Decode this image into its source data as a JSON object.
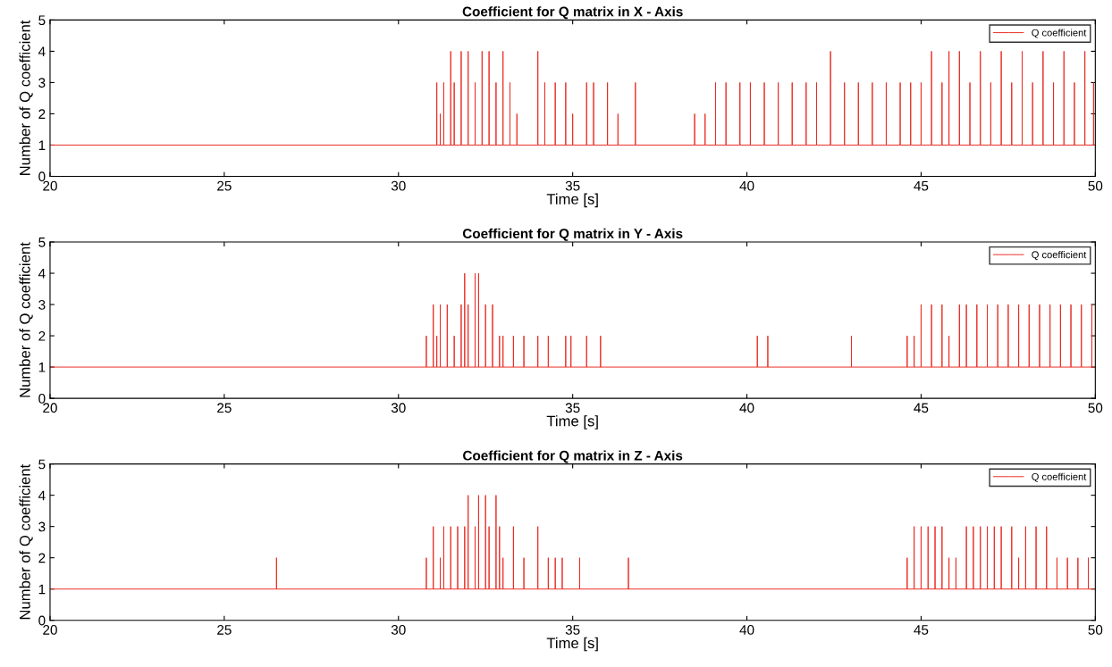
{
  "chart_data": [
    {
      "type": "line",
      "title": "Coefficient for Q matrix in X - Axis",
      "xlabel": "Time [s]",
      "ylabel": "Number of Q coefficient",
      "xlim": [
        20,
        50
      ],
      "ylim": [
        0,
        5
      ],
      "xticks": [
        20,
        25,
        30,
        35,
        40,
        45,
        50
      ],
      "yticks": [
        0,
        1,
        2,
        3,
        4,
        5
      ],
      "legend": "top right",
      "grid": false,
      "series": [
        {
          "name": "Q coefficient",
          "color": "#ea2a22",
          "x": [
            20,
            31.1,
            31.1,
            31.1,
            31.2,
            31.2,
            31.2,
            31.3,
            31.3,
            31.3,
            31.5,
            31.5,
            31.5,
            31.6,
            31.6,
            31.6,
            31.8,
            31.8,
            31.8,
            32.0,
            32.0,
            32.0,
            32.2,
            32.2,
            32.2,
            32.4,
            32.4,
            32.4,
            32.6,
            32.6,
            32.6,
            32.8,
            32.8,
            32.8,
            33.0,
            33.0,
            33.0,
            33.2,
            33.2,
            33.2,
            33.4,
            33.4,
            33.4,
            34.0,
            34.0,
            34.0,
            34.2,
            34.2,
            34.2,
            34.5,
            34.5,
            34.5,
            34.8,
            34.8,
            34.8,
            35.0,
            35.0,
            35.0,
            35.4,
            35.4,
            35.4,
            35.6,
            35.6,
            35.6,
            36.0,
            36.0,
            36.0,
            36.3,
            36.3,
            36.3,
            36.8,
            36.8,
            36.8,
            38.5,
            38.5,
            38.5,
            38.8,
            38.8,
            38.8,
            39.1,
            39.1,
            39.1,
            39.4,
            39.4,
            39.4,
            39.8,
            39.8,
            39.8,
            40.1,
            40.1,
            40.1,
            40.5,
            40.5,
            40.5,
            40.9,
            40.9,
            40.9,
            41.3,
            41.3,
            41.3,
            41.7,
            41.7,
            41.7,
            42.0,
            42.0,
            42.0,
            42.4,
            42.4,
            42.4,
            42.8,
            42.8,
            42.8,
            43.2,
            43.2,
            43.2,
            43.6,
            43.6,
            43.6,
            44.0,
            44.0,
            44.0,
            44.4,
            44.4,
            44.4,
            44.7,
            44.7,
            44.7,
            45.0,
            45.0,
            45.0,
            45.3,
            45.3,
            45.3,
            45.6,
            45.6,
            45.6,
            45.8,
            45.8,
            45.8,
            46.1,
            46.1,
            46.1,
            46.4,
            46.4,
            46.4,
            46.7,
            46.7,
            46.7,
            47.0,
            47.0,
            47.0,
            47.3,
            47.3,
            47.3,
            47.6,
            47.6,
            47.6,
            47.9,
            47.9,
            47.9,
            48.2,
            48.2,
            48.2,
            48.5,
            48.5,
            48.5,
            48.8,
            48.8,
            48.8,
            49.1,
            49.1,
            49.1,
            49.4,
            49.4,
            49.4,
            49.7,
            49.7,
            49.7,
            49.95,
            49.95,
            49.95,
            50
          ],
          "values": [
            1,
            1,
            3,
            1,
            1,
            2,
            1,
            1,
            3,
            1,
            1,
            4,
            1,
            1,
            3,
            1,
            1,
            4,
            1,
            1,
            4,
            1,
            1,
            3,
            1,
            1,
            4,
            1,
            1,
            4,
            1,
            1,
            3,
            1,
            1,
            4,
            1,
            1,
            3,
            1,
            1,
            2,
            1,
            1,
            4,
            1,
            1,
            3,
            1,
            1,
            3,
            1,
            1,
            3,
            1,
            1,
            2,
            1,
            1,
            3,
            1,
            1,
            3,
            1,
            1,
            3,
            1,
            1,
            2,
            1,
            1,
            3,
            1,
            1,
            2,
            1,
            1,
            2,
            1,
            1,
            3,
            1,
            1,
            3,
            1,
            1,
            3,
            1,
            1,
            3,
            1,
            1,
            3,
            1,
            1,
            3,
            1,
            1,
            3,
            1,
            1,
            3,
            1,
            1,
            3,
            1,
            1,
            4,
            1,
            1,
            3,
            1,
            1,
            3,
            1,
            1,
            3,
            1,
            1,
            3,
            1,
            1,
            3,
            1,
            1,
            3,
            1,
            1,
            3,
            1,
            1,
            4,
            1,
            1,
            3,
            1,
            1,
            4,
            1,
            1,
            4,
            1,
            1,
            3,
            1,
            1,
            4,
            1,
            1,
            3,
            1,
            1,
            4,
            1,
            1,
            3,
            1,
            1,
            4,
            1,
            1,
            3,
            1,
            1,
            4,
            1,
            1,
            3,
            1,
            1,
            4,
            1,
            1,
            3,
            1,
            1,
            4,
            1,
            1,
            3,
            1,
            1
          ]
        }
      ]
    },
    {
      "type": "line",
      "title": "Coefficient for Q matrix in Y - Axis",
      "xlabel": "Time [s]",
      "ylabel": "Number of Q coefficient",
      "xlim": [
        20,
        50
      ],
      "ylim": [
        0,
        5
      ],
      "xticks": [
        20,
        25,
        30,
        35,
        40,
        45,
        50
      ],
      "yticks": [
        0,
        1,
        2,
        3,
        4,
        5
      ],
      "legend": "top right",
      "grid": false,
      "series": [
        {
          "name": "Q coefficient",
          "color": "#ea2a22",
          "x": [
            20,
            30.8,
            30.8,
            30.8,
            31.0,
            31.0,
            31.0,
            31.1,
            31.1,
            31.1,
            31.2,
            31.2,
            31.2,
            31.4,
            31.4,
            31.4,
            31.6,
            31.6,
            31.6,
            31.8,
            31.8,
            31.8,
            31.9,
            31.9,
            31.9,
            32.0,
            32.0,
            32.0,
            32.2,
            32.2,
            32.2,
            32.3,
            32.3,
            32.3,
            32.5,
            32.5,
            32.5,
            32.7,
            32.7,
            32.7,
            32.9,
            32.9,
            32.9,
            33.0,
            33.0,
            33.0,
            33.3,
            33.3,
            33.3,
            33.6,
            33.6,
            33.6,
            34.0,
            34.0,
            34.0,
            34.3,
            34.3,
            34.3,
            34.8,
            34.8,
            34.8,
            34.95,
            34.95,
            34.95,
            35.4,
            35.4,
            35.4,
            35.8,
            35.8,
            35.8,
            40.3,
            40.3,
            40.3,
            40.6,
            40.6,
            40.6,
            43.0,
            43.0,
            43.0,
            44.6,
            44.6,
            44.6,
            44.8,
            44.8,
            44.8,
            45.0,
            45.0,
            45.0,
            45.3,
            45.3,
            45.3,
            45.6,
            45.6,
            45.6,
            45.8,
            45.8,
            45.8,
            46.1,
            46.1,
            46.1,
            46.3,
            46.3,
            46.3,
            46.6,
            46.6,
            46.6,
            46.9,
            46.9,
            46.9,
            47.2,
            47.2,
            47.2,
            47.5,
            47.5,
            47.5,
            47.8,
            47.8,
            47.8,
            48.1,
            48.1,
            48.1,
            48.4,
            48.4,
            48.4,
            48.7,
            48.7,
            48.7,
            49.0,
            49.0,
            49.0,
            49.3,
            49.3,
            49.3,
            49.6,
            49.6,
            49.6,
            49.9,
            49.9,
            49.9,
            50
          ],
          "values": [
            1,
            1,
            2,
            1,
            1,
            3,
            1,
            1,
            2,
            1,
            1,
            3,
            1,
            1,
            3,
            1,
            1,
            2,
            1,
            1,
            3,
            1,
            1,
            4,
            1,
            1,
            3,
            1,
            1,
            4,
            1,
            1,
            4,
            1,
            1,
            3,
            1,
            1,
            3,
            1,
            1,
            2,
            1,
            1,
            2,
            1,
            1,
            2,
            1,
            1,
            2,
            1,
            1,
            2,
            1,
            1,
            2,
            1,
            1,
            2,
            1,
            1,
            2,
            1,
            1,
            2,
            1,
            1,
            2,
            1,
            1,
            2,
            1,
            1,
            2,
            1,
            1,
            2,
            1,
            1,
            2,
            1,
            1,
            2,
            1,
            1,
            3,
            1,
            1,
            3,
            1,
            1,
            3,
            1,
            1,
            2,
            1,
            1,
            3,
            1,
            1,
            3,
            1,
            1,
            3,
            1,
            1,
            3,
            1,
            1,
            3,
            1,
            1,
            3,
            1,
            1,
            3,
            1,
            1,
            3,
            1,
            1,
            3,
            1,
            1,
            3,
            1,
            1,
            3,
            1,
            1,
            3,
            1,
            1,
            3,
            1,
            1,
            3,
            1,
            1
          ]
        }
      ]
    },
    {
      "type": "line",
      "title": "Coefficient for Q matrix in Z - Axis",
      "xlabel": "Time [s]",
      "ylabel": "Number of Q coefficient",
      "xlim": [
        20,
        50
      ],
      "ylim": [
        0,
        5
      ],
      "xticks": [
        20,
        25,
        30,
        35,
        40,
        45,
        50
      ],
      "yticks": [
        0,
        1,
        2,
        3,
        4,
        5
      ],
      "legend": "top right",
      "grid": false,
      "series": [
        {
          "name": "Q coefficient",
          "color": "#ea2a22",
          "x": [
            20,
            26.5,
            26.5,
            26.5,
            30.8,
            30.8,
            30.8,
            31.0,
            31.0,
            31.0,
            31.2,
            31.2,
            31.2,
            31.3,
            31.3,
            31.3,
            31.5,
            31.5,
            31.5,
            31.7,
            31.7,
            31.7,
            31.9,
            31.9,
            31.9,
            32.0,
            32.0,
            32.0,
            32.2,
            32.2,
            32.2,
            32.3,
            32.3,
            32.3,
            32.5,
            32.5,
            32.5,
            32.6,
            32.6,
            32.6,
            32.8,
            32.8,
            32.8,
            32.9,
            32.9,
            32.9,
            33.0,
            33.0,
            33.0,
            33.3,
            33.3,
            33.3,
            33.6,
            33.6,
            33.6,
            34.0,
            34.0,
            34.0,
            34.3,
            34.3,
            34.3,
            34.5,
            34.5,
            34.5,
            34.7,
            34.7,
            34.7,
            35.2,
            35.2,
            35.2,
            36.6,
            36.6,
            36.6,
            44.6,
            44.6,
            44.6,
            44.8,
            44.8,
            44.8,
            45.0,
            45.0,
            45.0,
            45.2,
            45.2,
            45.2,
            45.4,
            45.4,
            45.4,
            45.6,
            45.6,
            45.6,
            45.8,
            45.8,
            45.8,
            46.0,
            46.0,
            46.0,
            46.3,
            46.3,
            46.3,
            46.5,
            46.5,
            46.5,
            46.7,
            46.7,
            46.7,
            46.9,
            46.9,
            46.9,
            47.1,
            47.1,
            47.1,
            47.3,
            47.3,
            47.3,
            47.6,
            47.6,
            47.6,
            47.8,
            47.8,
            47.8,
            48.0,
            48.0,
            48.0,
            48.3,
            48.3,
            48.3,
            48.6,
            48.6,
            48.6,
            48.9,
            48.9,
            48.9,
            49.2,
            49.2,
            49.2,
            49.5,
            49.5,
            49.5,
            49.8,
            49.8,
            49.8,
            50
          ],
          "values": [
            1,
            1,
            2,
            1,
            1,
            2,
            1,
            1,
            3,
            1,
            1,
            2,
            1,
            1,
            3,
            1,
            1,
            3,
            1,
            1,
            3,
            1,
            1,
            3,
            1,
            1,
            4,
            1,
            1,
            3,
            1,
            1,
            4,
            1,
            1,
            4,
            1,
            1,
            3,
            1,
            1,
            4,
            1,
            1,
            3,
            1,
            1,
            2,
            1,
            1,
            3,
            1,
            1,
            2,
            1,
            1,
            3,
            1,
            1,
            2,
            1,
            1,
            2,
            1,
            1,
            2,
            1,
            1,
            2,
            1,
            1,
            2,
            1,
            1,
            2,
            1,
            1,
            3,
            1,
            1,
            3,
            1,
            1,
            3,
            1,
            1,
            3,
            1,
            1,
            3,
            1,
            1,
            2,
            1,
            1,
            2,
            1,
            1,
            3,
            1,
            1,
            3,
            1,
            1,
            3,
            1,
            1,
            3,
            1,
            1,
            3,
            1,
            1,
            3,
            1,
            1,
            3,
            1,
            1,
            2,
            1,
            1,
            3,
            1,
            1,
            3,
            1,
            1,
            3,
            1,
            1,
            2,
            1,
            1,
            2,
            1,
            1,
            2,
            1,
            1,
            2,
            1,
            1
          ]
        }
      ]
    }
  ]
}
